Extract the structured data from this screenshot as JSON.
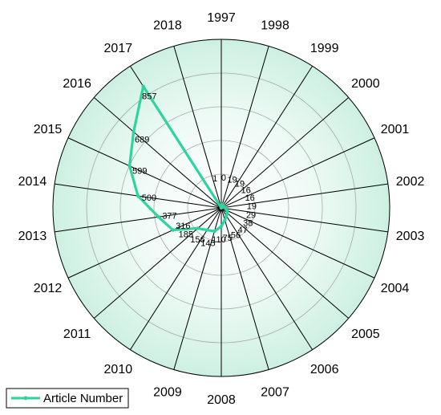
{
  "chart_data": {
    "type": "radar",
    "title": "",
    "categories": [
      "1997",
      "1998",
      "1999",
      "2000",
      "2001",
      "2002",
      "2003",
      "2004",
      "2005",
      "2006",
      "2007",
      "2008",
      "2009",
      "2010",
      "2011",
      "2012",
      "2013",
      "2014",
      "2015",
      "2016",
      "2017",
      "2018"
    ],
    "series": [
      {
        "name": "Article Number",
        "color": "#2ed3a0",
        "values": [
          0,
          19,
          19,
          16,
          16,
          19,
          29,
          38,
          47,
          56,
          75,
          110,
          145,
          156,
          185,
          316,
          377,
          500,
          599,
          689,
          857,
          1
        ]
      }
    ],
    "value_labels": [
      "0",
      "19",
      "19",
      "16",
      "16",
      "19",
      "29",
      "38",
      "47",
      "56",
      "75",
      "110",
      "145",
      "156",
      "185",
      "316",
      "377",
      "500",
      "599",
      "689",
      "857",
      "1"
    ],
    "rlim": [
      0,
      1000
    ],
    "grid": true,
    "legend_position": "bottom-left",
    "colors": {
      "sector_fill": "#d6f3e8",
      "sector_edge": "#b7e8d5",
      "grid": "#7a7a7a",
      "spoke": "#000000"
    }
  }
}
